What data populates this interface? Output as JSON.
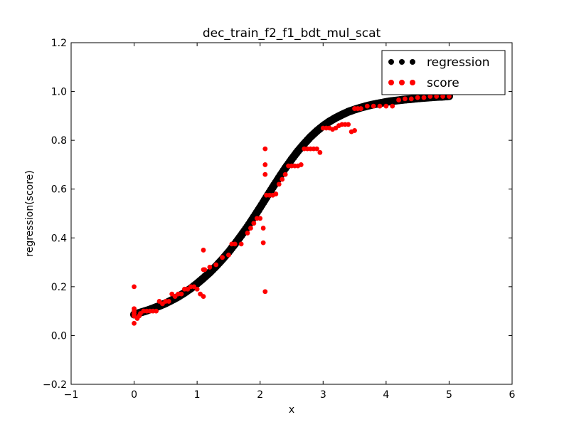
{
  "chart_data": {
    "type": "scatter",
    "title": "dec_train_f2_f1_bdt_mul_scat",
    "xlabel": "x",
    "ylabel": "regression(score)",
    "xlim": [
      -1,
      6
    ],
    "ylim": [
      -0.2,
      1.2
    ],
    "xticks": [
      -1,
      0,
      1,
      2,
      3,
      4,
      5,
      6
    ],
    "xtick_labels": [
      "−1",
      "0",
      "1",
      "2",
      "3",
      "4",
      "5",
      "6"
    ],
    "yticks": [
      -0.2,
      0.0,
      0.2,
      0.4,
      0.6,
      0.8,
      1.0,
      1.2
    ],
    "ytick_labels": [
      "−0.2",
      "0.0",
      "0.2",
      "0.4",
      "0.6",
      "0.8",
      "1.0",
      "1.2"
    ],
    "grid": false,
    "legend_position": "top-right",
    "series": [
      {
        "name": "regression",
        "color": "#000000",
        "x": [
          0.0,
          0.1,
          0.2,
          0.3,
          0.4,
          0.5,
          0.6,
          0.7,
          0.8,
          0.9,
          1.0,
          1.1,
          1.2,
          1.3,
          1.4,
          1.5,
          1.6,
          1.7,
          1.8,
          1.9,
          2.0,
          2.1,
          2.2,
          2.3,
          2.4,
          2.5,
          2.6,
          2.7,
          2.8,
          2.9,
          3.0,
          3.1,
          3.2,
          3.3,
          3.4,
          3.5,
          3.6,
          3.7,
          3.8,
          3.9,
          4.0,
          4.1,
          4.2,
          4.3,
          4.4,
          4.5,
          4.6,
          4.7,
          4.8,
          4.9,
          5.0
        ],
        "y": [
          0.086,
          0.094,
          0.102,
          0.111,
          0.121,
          0.132,
          0.145,
          0.159,
          0.175,
          0.193,
          0.213,
          0.235,
          0.258,
          0.284,
          0.312,
          0.342,
          0.375,
          0.41,
          0.446,
          0.485,
          0.525,
          0.566,
          0.607,
          0.647,
          0.686,
          0.722,
          0.756,
          0.786,
          0.814,
          0.838,
          0.859,
          0.877,
          0.892,
          0.905,
          0.917,
          0.926,
          0.934,
          0.941,
          0.947,
          0.952,
          0.957,
          0.961,
          0.964,
          0.967,
          0.969,
          0.972,
          0.974,
          0.976,
          0.978,
          0.979,
          0.981
        ]
      },
      {
        "name": "score",
        "color": "#ff0000",
        "x": [
          0.0,
          0.0,
          0.0,
          0.0,
          0.0,
          0.0,
          0.05,
          0.08,
          0.1,
          0.15,
          0.2,
          0.25,
          0.3,
          0.35,
          0.4,
          0.45,
          0.5,
          0.55,
          0.6,
          0.65,
          0.7,
          0.75,
          0.8,
          0.85,
          0.9,
          0.95,
          1.0,
          1.05,
          1.1,
          1.1,
          1.1,
          1.12,
          1.2,
          1.3,
          1.4,
          1.5,
          1.55,
          1.6,
          1.7,
          1.8,
          1.85,
          1.9,
          1.95,
          2.0,
          2.05,
          2.05,
          2.08,
          2.08,
          2.08,
          2.08,
          2.1,
          2.15,
          2.2,
          2.25,
          2.3,
          2.35,
          2.4,
          2.45,
          2.5,
          2.55,
          2.6,
          2.65,
          2.7,
          2.75,
          2.8,
          2.85,
          2.9,
          2.95,
          3.0,
          3.05,
          3.1,
          3.15,
          3.2,
          3.25,
          3.3,
          3.35,
          3.4,
          3.45,
          3.5,
          3.5,
          3.55,
          3.6,
          3.7,
          3.8,
          3.9,
          4.0,
          4.1,
          4.2,
          4.3,
          4.4,
          4.5,
          4.6,
          4.7,
          4.8,
          4.9,
          5.0
        ],
        "y": [
          0.2,
          0.11,
          0.1,
          0.09,
          0.08,
          0.05,
          0.07,
          0.08,
          0.09,
          0.1,
          0.1,
          0.1,
          0.1,
          0.1,
          0.14,
          0.13,
          0.14,
          0.14,
          0.17,
          0.16,
          0.17,
          0.17,
          0.19,
          0.19,
          0.2,
          0.2,
          0.19,
          0.17,
          0.35,
          0.27,
          0.16,
          0.27,
          0.28,
          0.29,
          0.32,
          0.33,
          0.375,
          0.375,
          0.375,
          0.42,
          0.44,
          0.46,
          0.48,
          0.48,
          0.44,
          0.38,
          0.765,
          0.7,
          0.66,
          0.18,
          0.575,
          0.575,
          0.575,
          0.58,
          0.62,
          0.64,
          0.66,
          0.695,
          0.695,
          0.695,
          0.695,
          0.7,
          0.765,
          0.765,
          0.765,
          0.765,
          0.765,
          0.75,
          0.85,
          0.85,
          0.85,
          0.845,
          0.85,
          0.86,
          0.865,
          0.865,
          0.865,
          0.835,
          0.93,
          0.84,
          0.93,
          0.93,
          0.94,
          0.94,
          0.94,
          0.94,
          0.94,
          0.965,
          0.97,
          0.97,
          0.975,
          0.975,
          0.98,
          0.98,
          0.98,
          0.98
        ]
      }
    ]
  }
}
